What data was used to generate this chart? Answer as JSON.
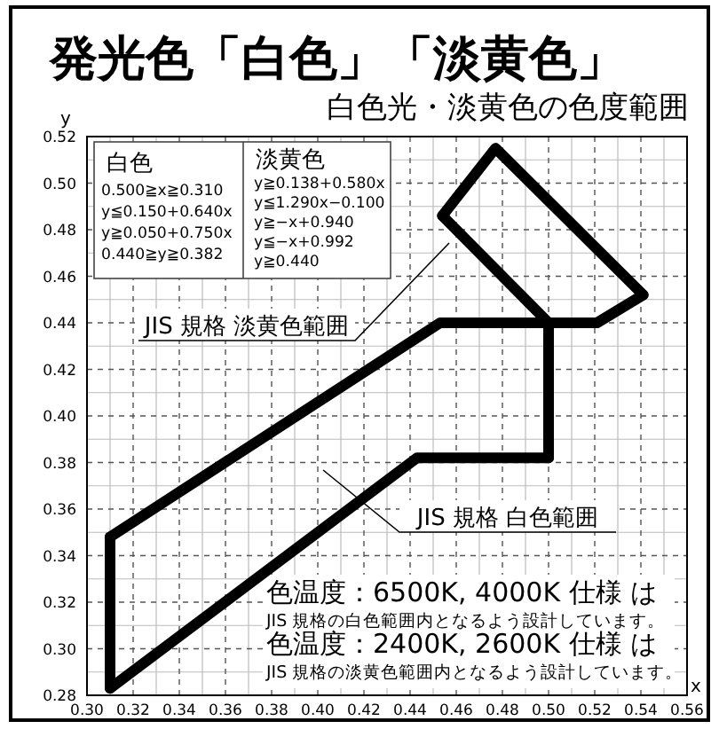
{
  "chart_data": {
    "type": "line",
    "title": "発光色「白色」「淡黄色」",
    "subtitle": "白色光・淡黄色の色度範囲",
    "xlabel": "x",
    "ylabel": "y",
    "xlim": [
      0.3,
      0.56
    ],
    "ylim": [
      0.28,
      0.52
    ],
    "xticks": [
      {
        "value": 0.3,
        "label": "0.30"
      },
      {
        "value": 0.32,
        "label": "0.32"
      },
      {
        "value": 0.34,
        "label": "0.34"
      },
      {
        "value": 0.36,
        "label": "0.36"
      },
      {
        "value": 0.38,
        "label": "0.38"
      },
      {
        "value": 0.4,
        "label": "0.40"
      },
      {
        "value": 0.42,
        "label": "0.42"
      },
      {
        "value": 0.44,
        "label": "0.44"
      },
      {
        "value": 0.46,
        "label": "0.46"
      },
      {
        "value": 0.48,
        "label": "0.48"
      },
      {
        "value": 0.5,
        "label": "0.50"
      },
      {
        "value": 0.52,
        "label": "0.52"
      },
      {
        "value": 0.54,
        "label": "0.54"
      },
      {
        "value": 0.56,
        "label": "0.56"
      }
    ],
    "yticks": [
      {
        "value": 0.28,
        "label": "0.28"
      },
      {
        "value": 0.3,
        "label": "0.30"
      },
      {
        "value": 0.32,
        "label": "0.32"
      },
      {
        "value": 0.34,
        "label": "0.34"
      },
      {
        "value": 0.36,
        "label": "0.36"
      },
      {
        "value": 0.38,
        "label": "0.38"
      },
      {
        "value": 0.4,
        "label": "0.40"
      },
      {
        "value": 0.42,
        "label": "0.42"
      },
      {
        "value": 0.44,
        "label": "0.44"
      },
      {
        "value": 0.46,
        "label": "0.46"
      },
      {
        "value": 0.48,
        "label": "0.48"
      },
      {
        "value": 0.5,
        "label": "0.50"
      },
      {
        "value": 0.52,
        "label": "0.52"
      }
    ],
    "grid": true,
    "series": [
      {
        "color": "#000000",
        "x": [
          0.31,
          0.453,
          0.5
        ],
        "values": [
          0.348,
          0.44,
          0.44
        ]
      },
      {
        "color": "#000000",
        "x": [
          0.31,
          0.443,
          0.5
        ],
        "values": [
          0.283,
          0.382,
          0.382
        ]
      },
      {
        "color": "#000000",
        "x": [
          0.31,
          0.31
        ],
        "values": [
          0.283,
          0.348
        ]
      },
      {
        "color": "#000000",
        "x": [
          0.5,
          0.5
        ],
        "values": [
          0.382,
          0.44
        ]
      },
      {
        "color": "#000000",
        "x": [
          0.454,
          0.477,
          0.541
        ],
        "values": [
          0.486,
          0.515,
          0.452
        ]
      },
      {
        "color": "#000000",
        "x": [
          0.454,
          0.5,
          0.521,
          0.541
        ],
        "values": [
          0.486,
          0.44,
          0.44,
          0.452
        ]
      }
    ],
    "annotations": [
      "JIS 規格 淡黄色範囲",
      "JIS 規格 白色範囲",
      "白色",
      "0.500≧x≧0.310",
      "y≦0.150+0.640x",
      "y≧0.050+0.750x",
      "0.440≧y≧0.382",
      "淡黄色",
      "y≧0.138+0.580x",
      "y≦1.290x−0.100",
      "y≧−x+0.940",
      "y≦−x+0.992",
      "y≧0.440",
      "色温度：6500K, 4000K 仕様 は",
      "JIS 規格の白色範囲内となるよう設計しています。",
      "色温度：2400K, 2600K 仕様 は",
      "JIS 規格の淡黄色範囲内となるよう設計しています。"
    ]
  }
}
